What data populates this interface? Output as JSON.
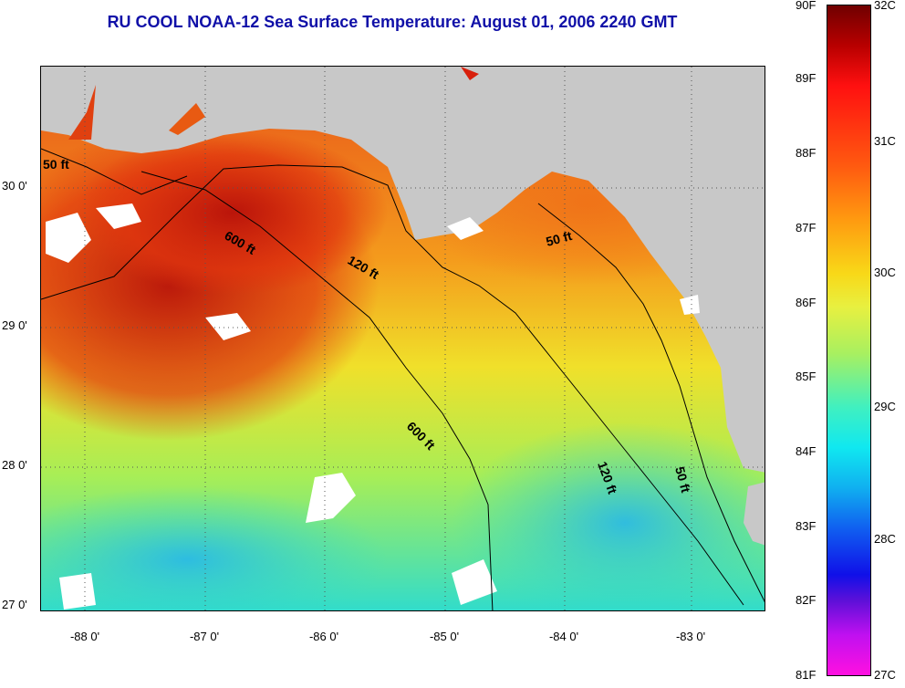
{
  "title": "RU COOL  NOAA-12  Sea Surface Temperature:  August 01, 2006 2240 GMT",
  "map": {
    "latitude_labels": [
      "30 0'",
      "29 0'",
      "28 0'",
      "27 0'"
    ],
    "longitude_labels": [
      "-88 0'",
      "-87 0'",
      "-86 0'",
      "-85 0'",
      "-84 0'",
      "-83 0'"
    ],
    "contour_labels": [
      "50 ft",
      "600 ft",
      "120 ft",
      "50 ft",
      "600 ft",
      "120 ft",
      "50 ft"
    ],
    "colors": {
      "land": "#c8c8c8",
      "warmest": "#8b0000",
      "warm": "#e63a10",
      "mid": "#f7c21a",
      "cool": "#c8ee3a",
      "cold": "#30e0d8",
      "cloud": "#ffffff"
    }
  },
  "colorbar": {
    "fahrenheit_labels": [
      "90F",
      "89F",
      "88F",
      "87F",
      "86F",
      "85F",
      "84F",
      "83F",
      "82F",
      "81F"
    ],
    "celsius_labels": [
      "32C",
      "31C",
      "30C",
      "29C",
      "28C",
      "27C"
    ]
  }
}
